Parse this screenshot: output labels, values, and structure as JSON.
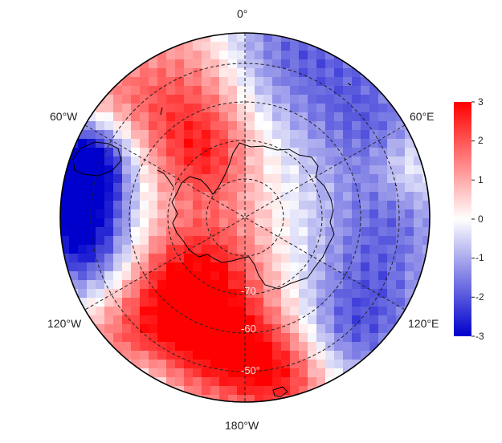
{
  "map": {
    "longitude_labels": {
      "top": "0°",
      "upper_left": "60°W",
      "upper_right": "60°E",
      "lower_left": "120°W",
      "lower_right": "120°E",
      "bottom": "180°W"
    },
    "latitude_labels": [
      "-70",
      "-60",
      "-50°"
    ],
    "projection": "south polar stereographic",
    "graticule": "dashed"
  },
  "colorbar": {
    "ticks": [
      "3",
      "2",
      "1",
      "0",
      "-1",
      "-2",
      "-3"
    ],
    "min": -3,
    "max": 3,
    "colors": {
      "high": "#ff0000",
      "mid": "#ffffff",
      "low": "#0000cc"
    }
  }
}
